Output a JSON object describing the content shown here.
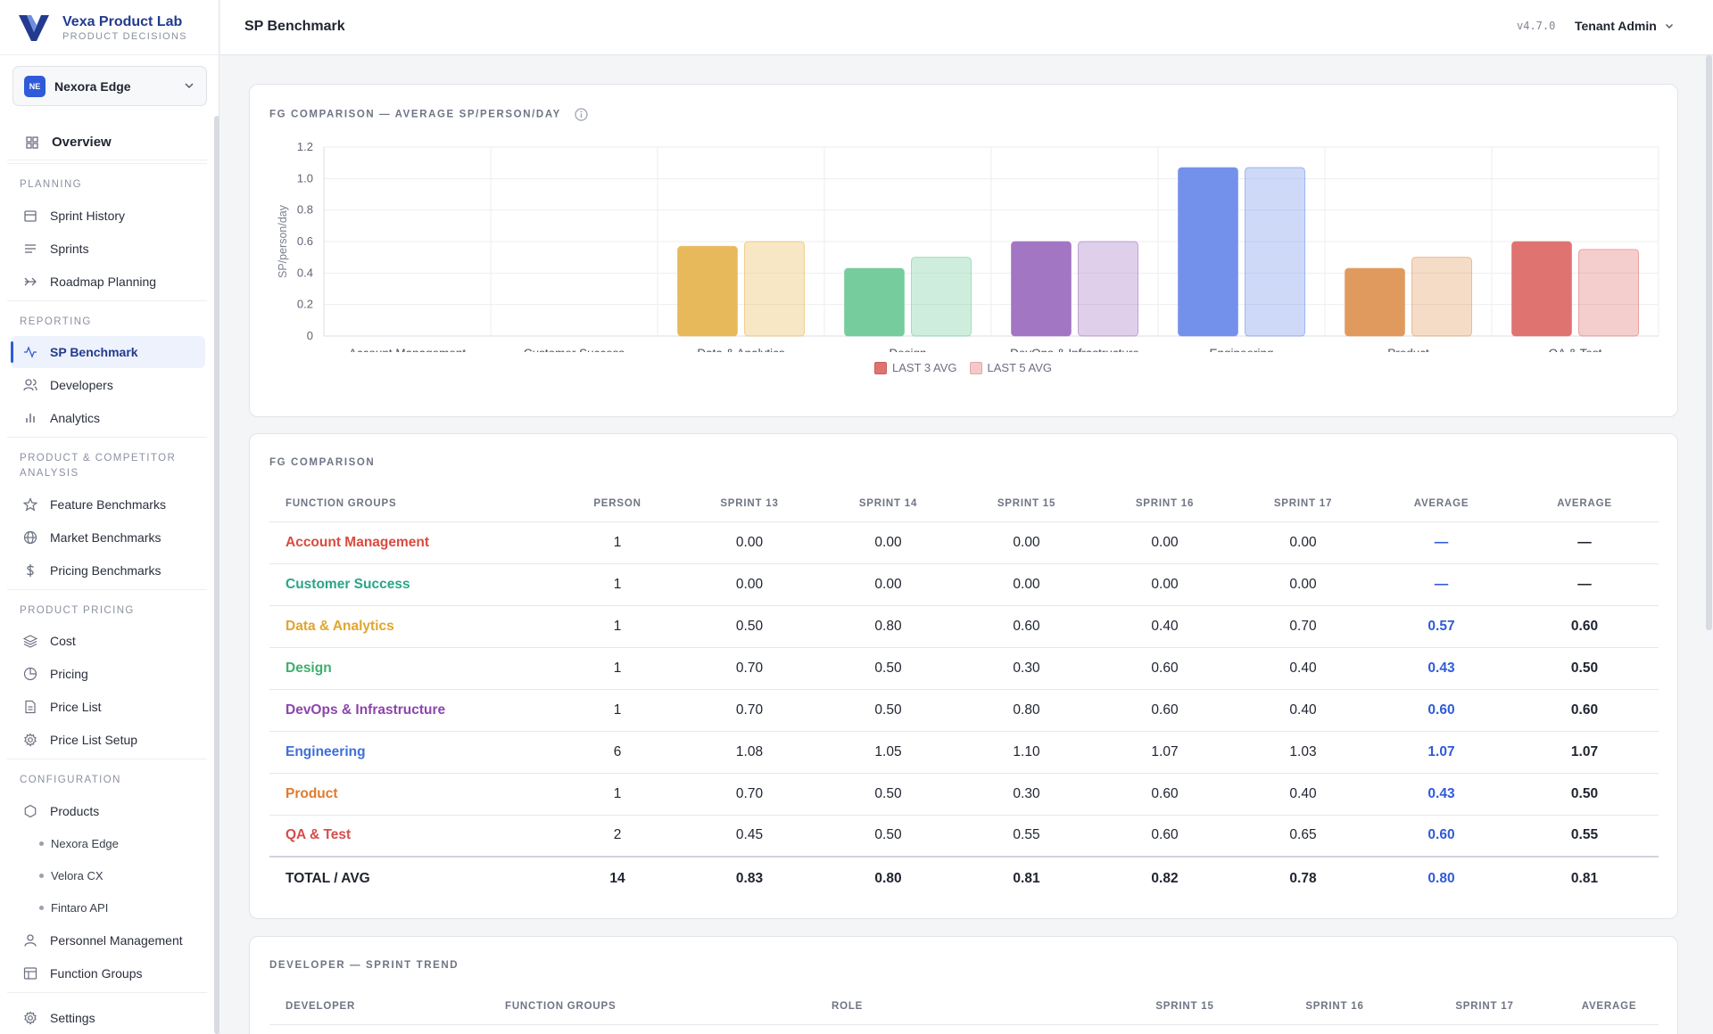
{
  "brand": {
    "name": "Vexa Product Lab",
    "subtitle": "PRODUCT DECISIONS"
  },
  "tenant": {
    "badge": "NE",
    "name": "Nexora Edge"
  },
  "sidebar": {
    "overview": "Overview",
    "sections": [
      {
        "title": "PLANNING",
        "items": [
          "Sprint History",
          "Sprints",
          "Roadmap Planning"
        ]
      },
      {
        "title": "REPORTING",
        "items": [
          "SP Benchmark",
          "Developers",
          "Analytics"
        ]
      },
      {
        "title": "PRODUCT & COMPETITOR ANALYSIS",
        "items": [
          "Feature Benchmarks",
          "Market Benchmarks",
          "Pricing Benchmarks"
        ]
      },
      {
        "title": "PRODUCT PRICING",
        "items": [
          "Cost",
          "Pricing",
          "Price List",
          "Price List Setup"
        ]
      },
      {
        "title": "CONFIGURATION",
        "items": [
          "Products",
          "Personnel Management",
          "Function Groups"
        ]
      }
    ],
    "products": [
      "Nexora Edge",
      "Velora CX",
      "Fintaro API"
    ],
    "settings": "Settings",
    "active": "SP Benchmark"
  },
  "topbar": {
    "title": "SP Benchmark",
    "version": "v4.7.0",
    "user": "Tenant Admin"
  },
  "chart_card": {
    "title": "FG COMPARISON — AVERAGE SP/PERSON/DAY"
  },
  "chart_data": {
    "type": "bar",
    "categories": [
      "Account Management",
      "Customer Success",
      "Data & Analytics",
      "Design",
      "DevOps & Infrastructure",
      "Engineering",
      "Product",
      "QA & Test"
    ],
    "series": [
      {
        "name": "LAST 3 AVG",
        "values": [
          0,
          0,
          0.57,
          0.43,
          0.6,
          1.07,
          0.43,
          0.6
        ]
      },
      {
        "name": "LAST 5 AVG",
        "values": [
          0,
          0,
          0.6,
          0.5,
          0.6,
          1.07,
          0.5,
          0.55
        ]
      }
    ],
    "colors": [
      "#e7b95a",
      "#76cc9d",
      "#a276c3",
      "#7391eb",
      "#e19a5e",
      "#df7370"
    ],
    "ylabel": "SP/person/day",
    "yticks": [
      "0",
      "0.2",
      "0.4",
      "0.6",
      "0.8",
      "1.0",
      "1.2"
    ],
    "ylim": [
      0,
      1.2
    ],
    "grid": true,
    "legend": "bottom-center",
    "legend_colors": [
      "#df7370",
      "#f4c9c7"
    ]
  },
  "fg_table": {
    "title": "FG COMPARISON",
    "headers": [
      "FUNCTION GROUPS",
      "PERSON",
      "SPRINT 13",
      "SPRINT 14",
      "SPRINT 15",
      "SPRINT 16",
      "SPRINT 17",
      "AVERAGE",
      "AVERAGE"
    ],
    "rows": [
      {
        "name": "Account Management",
        "color": "#d94b3f",
        "person": "1",
        "s13": "0.00",
        "s14": "0.00",
        "s15": "0.00",
        "s16": "0.00",
        "s17": "0.00",
        "avg3": "—",
        "avg5": "—"
      },
      {
        "name": "Customer Success",
        "color": "#2aa58a",
        "person": "1",
        "s13": "0.00",
        "s14": "0.00",
        "s15": "0.00",
        "s16": "0.00",
        "s17": "0.00",
        "avg3": "—",
        "avg5": "—"
      },
      {
        "name": "Data & Analytics",
        "color": "#e0a530",
        "person": "1",
        "s13": "0.50",
        "s14": "0.80",
        "s15": "0.60",
        "s16": "0.40",
        "s17": "0.70",
        "avg3": "0.57",
        "avg5": "0.60"
      },
      {
        "name": "Design",
        "color": "#3fae6d",
        "person": "1",
        "s13": "0.70",
        "s14": "0.50",
        "s15": "0.30",
        "s16": "0.60",
        "s17": "0.40",
        "avg3": "0.43",
        "avg5": "0.50"
      },
      {
        "name": "DevOps & Infrastructure",
        "color": "#8d44ad",
        "person": "1",
        "s13": "0.70",
        "s14": "0.50",
        "s15": "0.80",
        "s16": "0.60",
        "s17": "0.40",
        "avg3": "0.60",
        "avg5": "0.60"
      },
      {
        "name": "Engineering",
        "color": "#3f6fd7",
        "person": "6",
        "s13": "1.08",
        "s14": "1.05",
        "s15": "1.10",
        "s16": "1.07",
        "s17": "1.03",
        "avg3": "1.07",
        "avg5": "1.07"
      },
      {
        "name": "Product",
        "color": "#e07a2f",
        "person": "1",
        "s13": "0.70",
        "s14": "0.50",
        "s15": "0.30",
        "s16": "0.60",
        "s17": "0.40",
        "avg3": "0.43",
        "avg5": "0.50"
      },
      {
        "name": "QA & Test",
        "color": "#d94b4b",
        "person": "2",
        "s13": "0.45",
        "s14": "0.50",
        "s15": "0.55",
        "s16": "0.60",
        "s17": "0.65",
        "avg3": "0.60",
        "avg5": "0.55"
      }
    ],
    "total": {
      "name": "TOTAL / AVG",
      "person": "14",
      "s13": "0.83",
      "s14": "0.80",
      "s15": "0.81",
      "s16": "0.82",
      "s17": "0.78",
      "avg3": "0.80",
      "avg5": "0.81"
    }
  },
  "dev_table": {
    "title": "DEVELOPER — SPRINT TREND",
    "headers": [
      "DEVELOPER",
      "FUNCTION GROUPS",
      "ROLE",
      "SPRINT 15",
      "SPRINT 16",
      "SPRINT 17",
      "AVERAGE"
    ]
  }
}
